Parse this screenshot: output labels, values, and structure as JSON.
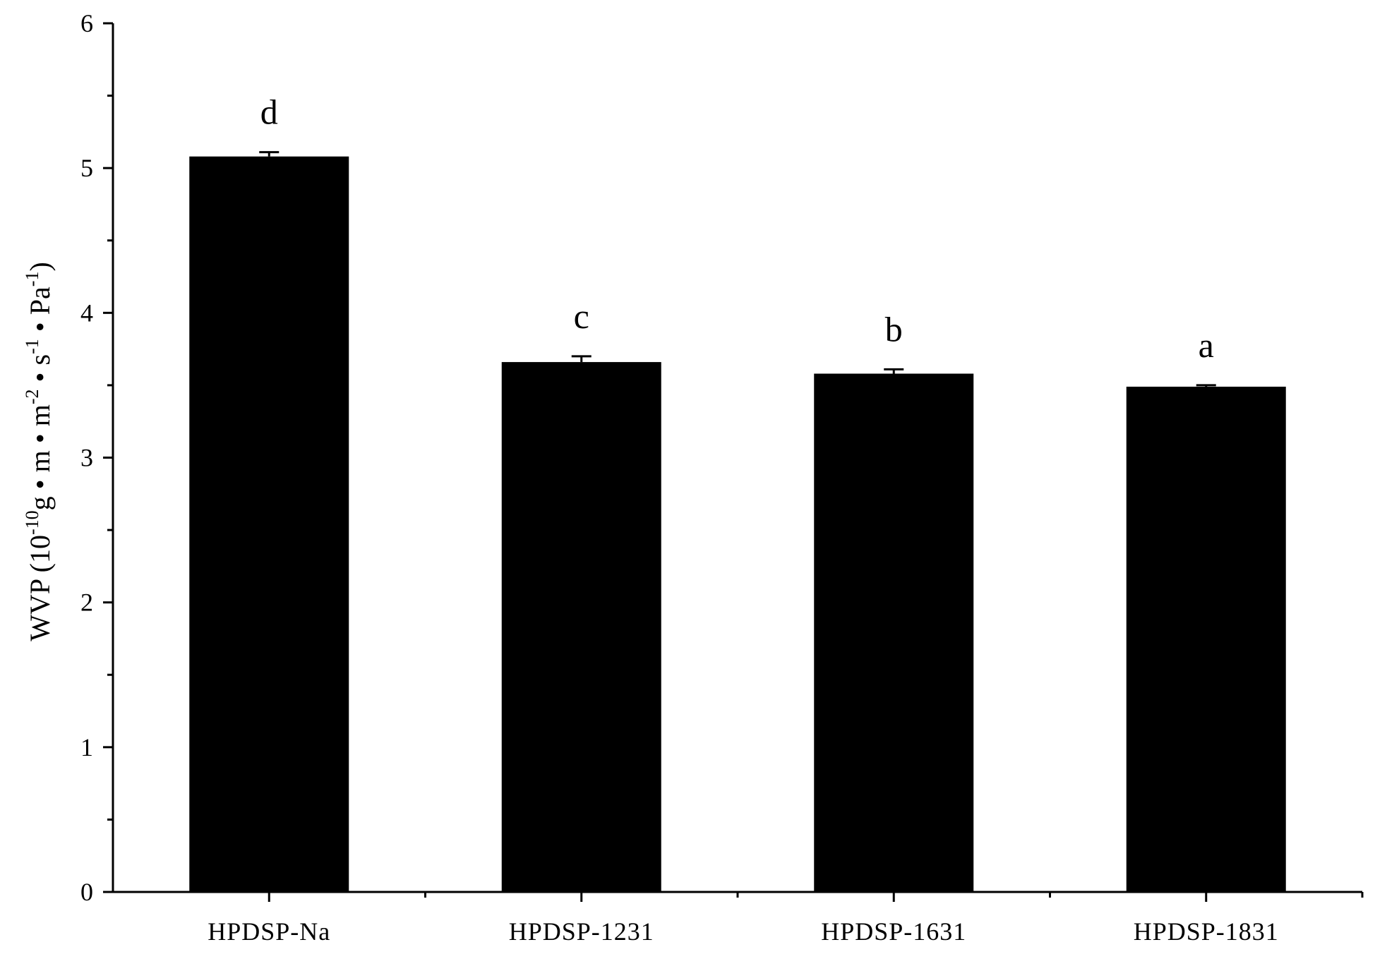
{
  "chart_data": {
    "type": "bar",
    "categories": [
      "HPDSP-Na",
      "HPDSP-1231",
      "HPDSP-1631",
      "HPDSP-1831"
    ],
    "values": [
      5.08,
      3.66,
      3.58,
      3.49
    ],
    "errors": [
      0.03,
      0.04,
      0.03,
      0.01
    ],
    "significance": [
      "d",
      "c",
      "b",
      "a"
    ],
    "ylim": [
      0,
      6
    ],
    "yticks": [
      "0",
      "1",
      "2",
      "3",
      "4",
      "5",
      "6"
    ],
    "ylabel": {
      "prefix": "WVP (10",
      "exp1": "-10",
      "mid1": "g • m • m",
      "exp2": "-2",
      "mid2": " • s",
      "exp3": "-1",
      "mid3": " • Pa",
      "exp4": "-1",
      "suffix": ")"
    },
    "bar_color": "#000000",
    "grid": false
  }
}
